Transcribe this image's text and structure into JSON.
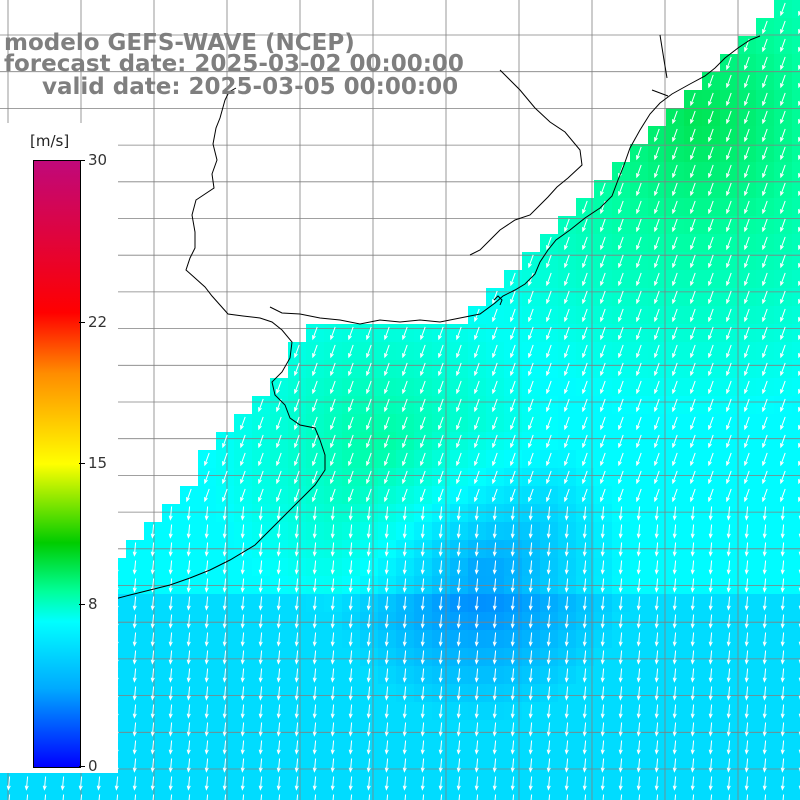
{
  "title": {
    "model": "modelo GEFS-WAVE (NCEP)",
    "forecast": "forecast date: 2025-03-02 00:00:00",
    "valid": "valid date: 2025-03-05 00:00:00"
  },
  "legend": {
    "unit": "[m/s]",
    "ticks": [
      "30",
      "22",
      "15",
      "8",
      "0"
    ],
    "tick_values": [
      30,
      22,
      15,
      8,
      0
    ],
    "range": [
      0,
      30
    ],
    "colors": [
      "#0000ff",
      "#00aaff",
      "#00ffff",
      "#00ff99",
      "#00cc00",
      "#ffff00",
      "#ff8c00",
      "#ff0000",
      "#c0087a"
    ]
  },
  "map": {
    "land_color": "#ffffff",
    "coastline_color": "#000000",
    "gridline_color": "#808080",
    "arrow_color": "#ffffff"
  }
}
